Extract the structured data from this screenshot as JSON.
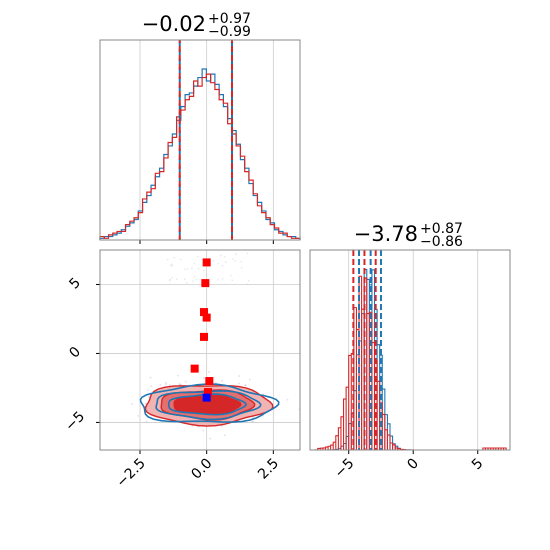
{
  "chart_data": [
    {
      "panel": "top-left",
      "type": "histogram",
      "title": {
        "median": "−0.02",
        "plus": "+0.97",
        "minus": "−0.99"
      },
      "xlim": [
        -4,
        3.5
      ],
      "grid": true,
      "xticks": [
        -2.5,
        0.0,
        2.5
      ],
      "quantile_lines": [
        -1.01,
        0.95
      ],
      "series": [
        {
          "color": "#1f77b4",
          "counts": [
            0.01,
            0.02,
            0.02,
            0.03,
            0.04,
            0.06,
            0.08,
            0.1,
            0.12,
            0.17,
            0.22,
            0.26,
            0.32,
            0.37,
            0.42,
            0.5,
            0.55,
            0.62,
            0.7,
            0.78,
            0.85,
            0.86,
            0.9,
            0.95,
            1.0,
            0.93,
            0.97,
            0.91,
            0.85,
            0.78,
            0.71,
            0.64,
            0.56,
            0.47,
            0.42,
            0.33,
            0.26,
            0.22,
            0.17,
            0.12,
            0.1,
            0.06,
            0.05,
            0.03,
            0.02,
            0.02,
            0.01
          ]
        },
        {
          "color": "#d62728",
          "counts": [
            0.02,
            0.01,
            0.03,
            0.04,
            0.05,
            0.05,
            0.09,
            0.11,
            0.13,
            0.16,
            0.24,
            0.28,
            0.3,
            0.39,
            0.4,
            0.48,
            0.57,
            0.6,
            0.72,
            0.76,
            0.82,
            0.84,
            0.93,
            0.9,
            0.95,
            0.97,
            0.92,
            0.88,
            0.82,
            0.8,
            0.68,
            0.62,
            0.55,
            0.49,
            0.4,
            0.35,
            0.27,
            0.2,
            0.16,
            0.13,
            0.09,
            0.07,
            0.04,
            0.04,
            0.02,
            0.01,
            0.01
          ]
        }
      ]
    },
    {
      "panel": "bottom-right",
      "type": "histogram",
      "title": {
        "median": "−3.78",
        "plus": "+0.87",
        "minus": "−0.86"
      },
      "xlim": [
        -8,
        7.5
      ],
      "grid": true,
      "xticks": [
        -5,
        0,
        5
      ],
      "quantile_lines_red": [
        -4.64,
        -3.78,
        -2.91
      ],
      "quantile_lines_blue": [
        -4.2,
        -3.3,
        -2.5
      ]
    },
    {
      "panel": "bottom-left",
      "type": "contour",
      "xlim": [
        -4,
        3.5
      ],
      "ylim": [
        -7,
        7.5
      ],
      "xticks": [
        -2.5,
        0.0,
        2.5
      ],
      "yticks": [
        -5,
        0,
        5
      ],
      "grid": true,
      "red_points": [
        [
          0.0,
          6.6
        ],
        [
          -0.05,
          5.1
        ],
        [
          0.0,
          2.6
        ],
        [
          -0.1,
          3.0
        ],
        [
          -0.1,
          1.2
        ],
        [
          -0.45,
          -1.1
        ],
        [
          0.1,
          -2.0
        ],
        [
          0.05,
          -2.8
        ]
      ],
      "blue_point": [
        0.0,
        -3.2
      ],
      "center": [
        0.0,
        -3.7
      ]
    }
  ]
}
